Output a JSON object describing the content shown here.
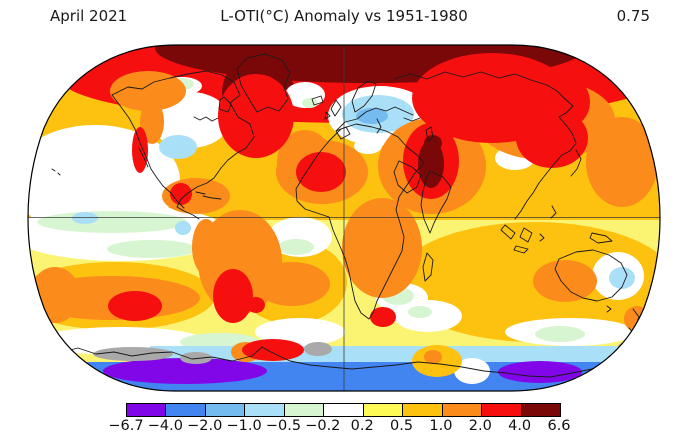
{
  "header": {
    "date_label": "April 2021",
    "title": "L-OTI(°C) Anomaly vs 1951-1980",
    "mean_anomaly": "0.75"
  },
  "chart_data": {
    "type": "heatmap",
    "subtype": "global-temperature-anomaly-map",
    "projection": "Robinson",
    "title": "L-OTI(°C) Anomaly vs 1951-1980",
    "period": "April 2021",
    "baseline": "1951-1980",
    "global_mean_anomaly_c": 0.75,
    "units": "°C",
    "colorbar": {
      "orientation": "horizontal",
      "boundary_labels": [
        "−6.7",
        "−4.0",
        "−2.0",
        "−1.0",
        "−0.5",
        "−0.2",
        "0.2",
        "0.5",
        "1.0",
        "2.0",
        "4.0",
        "6.6"
      ],
      "boundaries_c": [
        -6.7,
        -4.0,
        -2.0,
        -1.0,
        -0.5,
        -0.2,
        0.2,
        0.5,
        1.0,
        2.0,
        4.0,
        6.6
      ],
      "segment_colors": [
        "#8207e8",
        "#4285f0",
        "#74bbf0",
        "#a9dff7",
        "#d8f5d2",
        "#ffffff",
        "#fdfa55",
        "#fdc10f",
        "#fb8b1b",
        "#f50f0f",
        "#7a0808"
      ],
      "no_data_color": "#a9a9a9"
    },
    "regional_readings": [
      {
        "region": "Arctic Ocean and northern high latitudes",
        "anomaly_c": "4.0 to 6.6"
      },
      {
        "region": "Greenland and eastern Canada",
        "anomaly_c": "4.0 to 6.6"
      },
      {
        "region": "Middle East (Iran/Iraq)",
        "anomaly_c": "4.0 to 6.6"
      },
      {
        "region": "Siberia and northeast Asia",
        "anomaly_c": "2.0 to 4.0"
      },
      {
        "region": "Scandinavia / Barents Sea",
        "anomaly_c": "-1.0 to -0.2"
      },
      {
        "region": "South-central United States",
        "anomaly_c": "-1.0 to -0.5"
      },
      {
        "region": "Equatorial eastern Pacific",
        "anomaly_c": "-0.5 to 0.2"
      },
      {
        "region": "Southern South America",
        "anomaly_c": "2.0 to 4.0"
      },
      {
        "region": "South Pacific warm blob",
        "anomaly_c": "2.0 to 4.0"
      },
      {
        "region": "South Africa",
        "anomaly_c": "2.0 to 4.0"
      },
      {
        "region": "Eastern Australia",
        "anomaly_c": "-0.5 to 0.2"
      },
      {
        "region": "Antarctic Peninsula",
        "anomaly_c": "2.0 to 4.0"
      },
      {
        "region": "Antarctic coastal band",
        "anomaly_c": "-6.7 to -1.0"
      },
      {
        "region": "Antarctic interior patches",
        "anomaly_c": "no data (gray)"
      }
    ]
  }
}
